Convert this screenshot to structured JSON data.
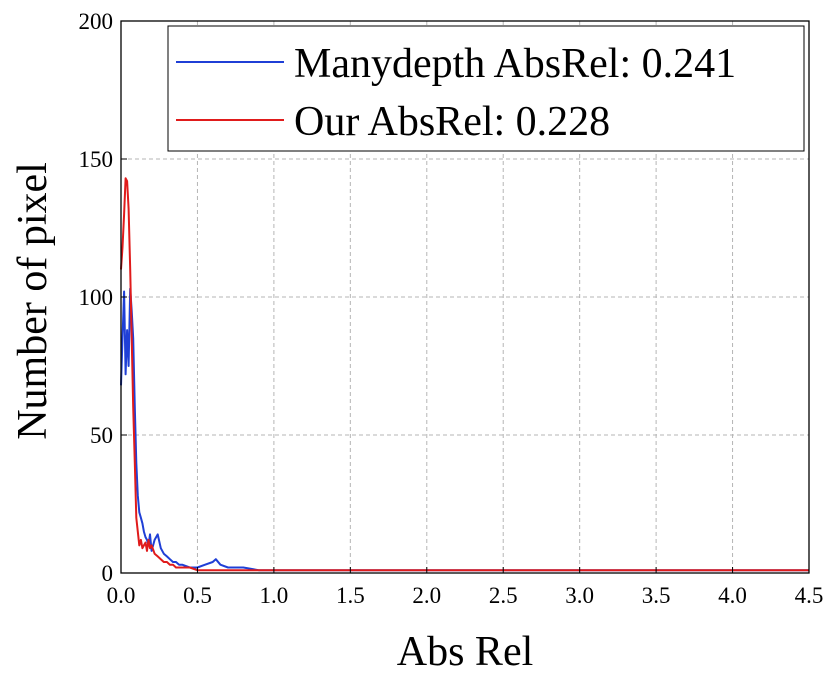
{
  "chart_data": {
    "type": "line",
    "title": "",
    "xlabel": "Abs Rel",
    "ylabel": "Number of pixel",
    "xlim": [
      0.0,
      4.5
    ],
    "ylim": [
      0,
      200
    ],
    "xticks": [
      0.0,
      0.5,
      1.0,
      1.5,
      2.0,
      2.5,
      3.0,
      3.5,
      4.0,
      4.5
    ],
    "xtick_labels": [
      "0.0",
      "0.5",
      "1.0",
      "1.5",
      "2.0",
      "2.5",
      "3.0",
      "3.5",
      "4.0",
      "4.5"
    ],
    "yticks": [
      0,
      50,
      100,
      150,
      200
    ],
    "ytick_labels": [
      "0",
      "50",
      "100",
      "150",
      "200"
    ],
    "grid": true,
    "legend_position": "top-right",
    "series": [
      {
        "name": "Manydepth AbsRel: 0.241",
        "color": "#1f3fd6",
        "x": [
          0.0,
          0.01,
          0.02,
          0.03,
          0.04,
          0.05,
          0.06,
          0.07,
          0.08,
          0.09,
          0.1,
          0.11,
          0.12,
          0.13,
          0.14,
          0.15,
          0.16,
          0.17,
          0.18,
          0.19,
          0.2,
          0.22,
          0.24,
          0.26,
          0.28,
          0.3,
          0.32,
          0.34,
          0.36,
          0.38,
          0.4,
          0.45,
          0.5,
          0.55,
          0.6,
          0.62,
          0.65,
          0.7,
          0.75,
          0.8,
          0.9,
          1.0,
          1.2,
          1.5,
          2.0,
          2.5,
          3.0,
          3.5,
          4.0,
          4.5
        ],
        "y": [
          68,
          85,
          102,
          72,
          88,
          75,
          103,
          95,
          85,
          60,
          40,
          28,
          22,
          20,
          18,
          15,
          13,
          12,
          10,
          14,
          8,
          12,
          14,
          9,
          7,
          6,
          5,
          4,
          4,
          3,
          3,
          2,
          2,
          3,
          4,
          5,
          3,
          2,
          2,
          2,
          1,
          1,
          1,
          1,
          1,
          1,
          1,
          1,
          1,
          1
        ]
      },
      {
        "name": "Our AbsRel: 0.228",
        "color": "#e01b1b",
        "x": [
          0.0,
          0.01,
          0.02,
          0.03,
          0.04,
          0.05,
          0.06,
          0.07,
          0.08,
          0.09,
          0.1,
          0.11,
          0.12,
          0.13,
          0.14,
          0.15,
          0.16,
          0.17,
          0.18,
          0.19,
          0.2,
          0.22,
          0.24,
          0.26,
          0.28,
          0.3,
          0.32,
          0.34,
          0.36,
          0.38,
          0.4,
          0.45,
          0.5,
          0.55,
          0.6,
          0.65,
          0.7,
          0.75,
          0.8,
          0.9,
          1.0,
          1.5,
          2.0,
          2.5,
          3.0,
          3.5,
          4.0,
          4.5
        ],
        "y": [
          110,
          118,
          130,
          143,
          142,
          132,
          110,
          85,
          60,
          40,
          20,
          15,
          10,
          12,
          9,
          10,
          11,
          8,
          12,
          9,
          10,
          7,
          6,
          5,
          4,
          4,
          3,
          3,
          2,
          2,
          2,
          2,
          1,
          1,
          1,
          1,
          1,
          1,
          1,
          1,
          1,
          1,
          1,
          1,
          1,
          1,
          1,
          1
        ]
      }
    ]
  }
}
